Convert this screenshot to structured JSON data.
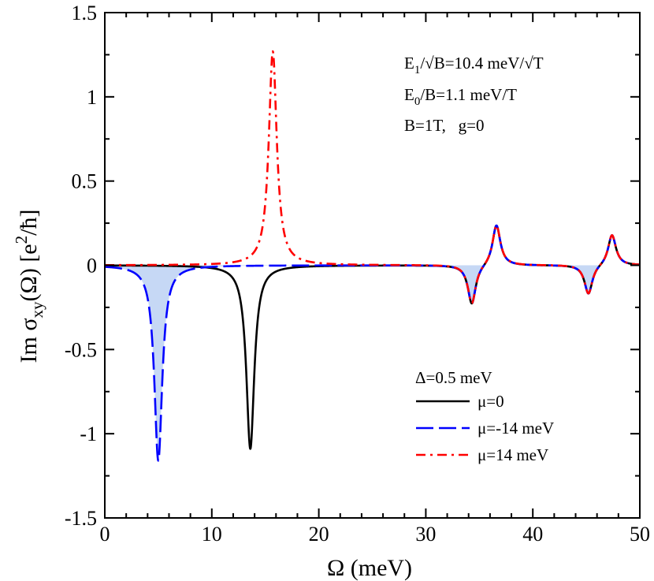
{
  "chart_data": {
    "type": "line",
    "xlabel": "Ω (meV)",
    "ylabel": "Im σxy(Ω) [e²/ħ]",
    "xlim": [
      0,
      50
    ],
    "ylim": [
      -1.5,
      1.5
    ],
    "x_ticks": [
      "0",
      "10",
      "20",
      "30",
      "40",
      "50"
    ],
    "y_ticks": [
      "-1.5",
      "-1",
      "-0.5",
      "0",
      "0.5",
      "1",
      "1.5"
    ],
    "grid": false,
    "legend_position": "bottom-right",
    "legend_header": "Δ=0.5 meV",
    "annotations": {
      "line1": "E1/√B=10.4 meV/√T",
      "line2": "E0/B=1.1 meV/T",
      "line3": "B=1T,   g=0"
    },
    "series": [
      {
        "name": "μ=0",
        "color": "#000000",
        "style": "solid",
        "peaks": [
          {
            "center": 13.6,
            "amplitude": -1.09
          },
          {
            "center": 34.3,
            "amplitude": -0.235
          },
          {
            "center": 36.6,
            "amplitude": 0.245
          },
          {
            "center": 45.2,
            "amplitude": -0.175
          },
          {
            "center": 47.4,
            "amplitude": 0.185
          }
        ]
      },
      {
        "name": "μ=-14 meV",
        "color": "#0000ff",
        "style": "dashed",
        "fill": "#c6d8f5",
        "peaks": [
          {
            "center": 5.0,
            "amplitude": -1.16
          },
          {
            "center": 34.3,
            "amplitude": -0.235
          },
          {
            "center": 36.6,
            "amplitude": 0.245
          },
          {
            "center": 45.2,
            "amplitude": -0.175
          },
          {
            "center": 47.4,
            "amplitude": 0.185
          }
        ]
      },
      {
        "name": "μ=14 meV",
        "color": "#ff0000",
        "style": "dash-dot",
        "peaks": [
          {
            "center": 15.7,
            "amplitude": 1.27
          },
          {
            "center": 34.3,
            "amplitude": -0.235
          },
          {
            "center": 36.6,
            "amplitude": 0.245
          },
          {
            "center": 45.2,
            "amplitude": -0.175
          },
          {
            "center": 47.4,
            "amplitude": 0.185
          }
        ]
      }
    ]
  }
}
